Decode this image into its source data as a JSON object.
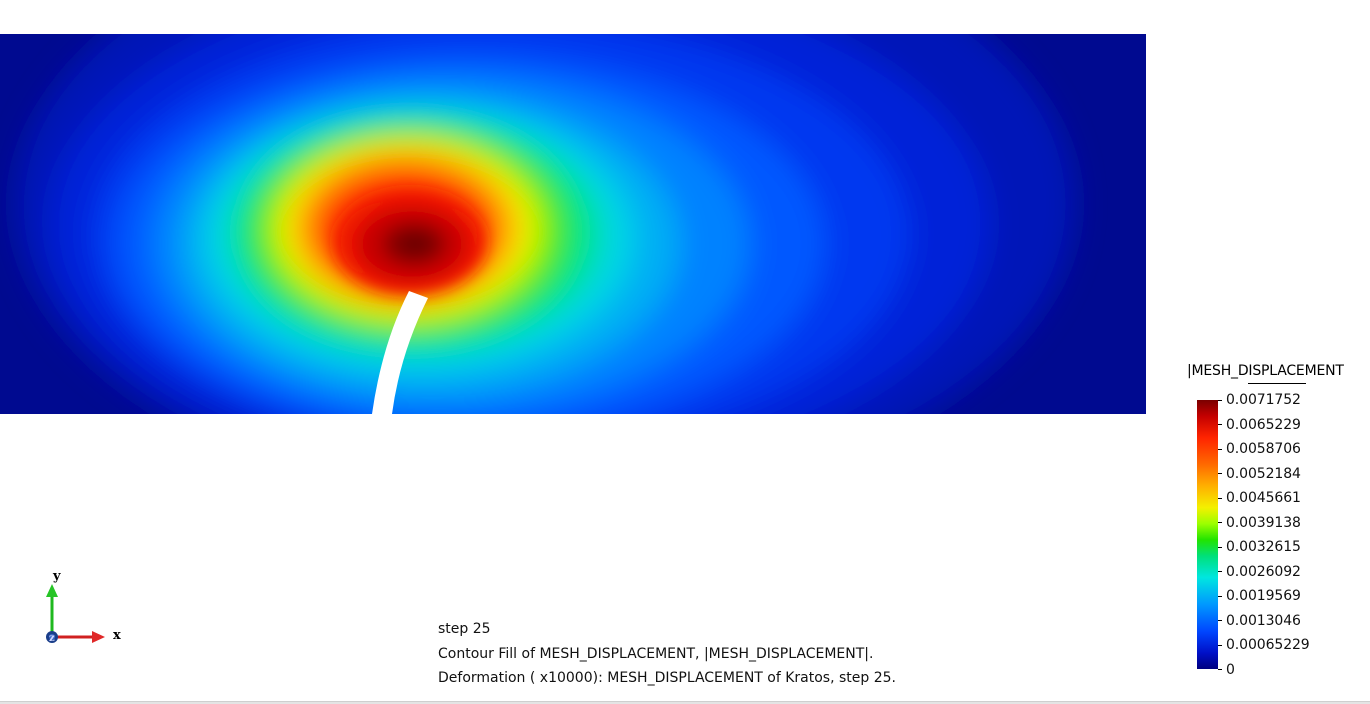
{
  "legend": {
    "title": "|MESH_DISPLACEMENT",
    "values": [
      "0.0071752",
      "0.0065229",
      "0.0058706",
      "0.0052184",
      "0.0045661",
      "0.0039138",
      "0.0032615",
      "0.0026092",
      "0.0019569",
      "0.0013046",
      "0.00065229",
      "0"
    ],
    "colors": {
      "max": "#7a0000",
      "mid": "#22e400",
      "min": "#000080"
    }
  },
  "axes": {
    "y_label": "y",
    "x_label": "x",
    "z_label": "z"
  },
  "info": {
    "step": "step 25",
    "contour": "Contour Fill of MESH_DISPLACEMENT, |MESH_DISPLACEMENT|.",
    "deformation": "Deformation ( x10000): MESH_DISPLACEMENT of Kratos, step 25."
  }
}
